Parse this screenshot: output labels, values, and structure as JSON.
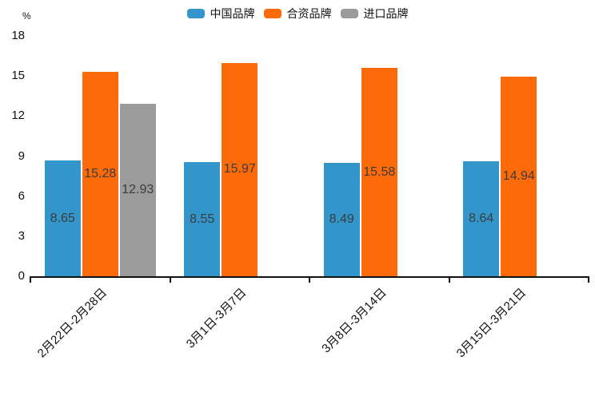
{
  "chart_data": {
    "type": "bar",
    "ylabel": "%",
    "categories": [
      "2月22日-2月28日",
      "3月1日-3月7日",
      "3月8日-3月14日",
      "3月15日-3月21日"
    ],
    "series": [
      {
        "name": "中国品牌",
        "color": "#3296cb",
        "values": [
          8.65,
          8.55,
          8.49,
          8.64
        ]
      },
      {
        "name": "合资品牌",
        "color": "#fc6a0a",
        "values": [
          15.28,
          15.97,
          15.58,
          14.94
        ]
      },
      {
        "name": "进口品牌",
        "color": "#9b9b9b",
        "values": [
          12.93,
          null,
          null,
          null
        ]
      }
    ],
    "ylim": [
      0,
      18
    ],
    "yticks": [
      0,
      3,
      6,
      9,
      12,
      15,
      18
    ],
    "grid": false,
    "legend_position": "top",
    "value_labels": true,
    "value_label_decimals": 2,
    "axis_color": "#111111",
    "value_label_color": "#3c3c3c"
  }
}
